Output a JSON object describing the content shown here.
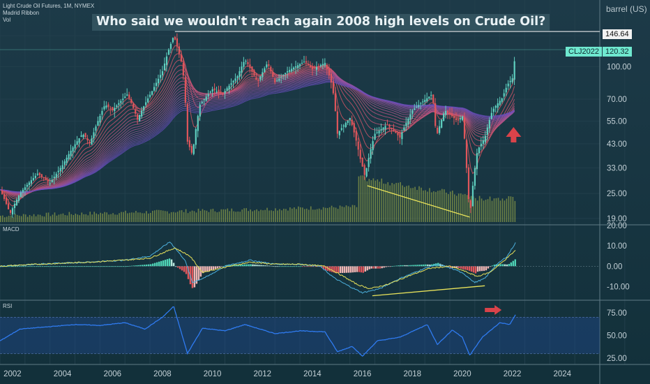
{
  "header": {
    "legend_lines": [
      "Light Crude Oil Futures, 1M, NYMEX",
      "Madrid Ribbon",
      "Vol"
    ],
    "unit_label": "barrel (US)"
  },
  "idea_title": "Who said we wouldn't reach again 2008 high levels on Crude Oil?",
  "panes": {
    "macd_label": "MACD",
    "rsi_label": "RSI"
  },
  "colors": {
    "background": "#16303d",
    "bull": "#5fd0c0",
    "bear": "#e0565b",
    "ribbon_top": "#e05662",
    "ribbon_bottom": "#6a4fc0",
    "macd_line": "#4db1de",
    "signal_line": "#e8e25a",
    "rsi_line": "#2f7bf0",
    "rsi_band": "#1f4a8c",
    "trendline": "#e8e25a",
    "arrow": "#d9434a",
    "volume": "#9aa948"
  },
  "chart_data": [
    {
      "type": "candlestick",
      "title": "Light Crude Oil Futures, 1M, NYMEX",
      "ylabel": "barrel (US)",
      "scale": "log",
      "ylim": [
        18,
        175
      ],
      "xlim": [
        2001.5,
        2025.5
      ],
      "x_ticks": [
        "2002",
        "2004",
        "2006",
        "2008",
        "2010",
        "2012",
        "2014",
        "2016",
        "2018",
        "2020",
        "2022",
        "2024"
      ],
      "y_ticks": [
        "100.00",
        "70.00",
        "55.00",
        "43.00",
        "33.00",
        "25.00",
        "19.00"
      ],
      "price_path": [
        [
          2001.5,
          26
        ],
        [
          2001.9,
          20
        ],
        [
          2002.3,
          25
        ],
        [
          2003.0,
          31
        ],
        [
          2003.5,
          28
        ],
        [
          2004.0,
          34
        ],
        [
          2004.8,
          48
        ],
        [
          2005.1,
          43
        ],
        [
          2005.7,
          66
        ],
        [
          2006.0,
          62
        ],
        [
          2006.6,
          74
        ],
        [
          2007.0,
          56
        ],
        [
          2007.6,
          77
        ],
        [
          2008.0,
          95
        ],
        [
          2008.45,
          140
        ],
        [
          2008.8,
          100
        ],
        [
          2009.0,
          44
        ],
        [
          2009.2,
          38
        ],
        [
          2009.5,
          66
        ],
        [
          2010.0,
          78
        ],
        [
          2010.4,
          74
        ],
        [
          2011.0,
          90
        ],
        [
          2011.3,
          108
        ],
        [
          2011.8,
          84
        ],
        [
          2012.2,
          104
        ],
        [
          2012.5,
          84
        ],
        [
          2013.0,
          95
        ],
        [
          2013.7,
          106
        ],
        [
          2014.0,
          97
        ],
        [
          2014.5,
          104
        ],
        [
          2014.8,
          80
        ],
        [
          2015.0,
          48
        ],
        [
          2015.5,
          57
        ],
        [
          2015.9,
          37
        ],
        [
          2016.1,
          30
        ],
        [
          2016.5,
          48
        ],
        [
          2017.0,
          53
        ],
        [
          2017.5,
          46
        ],
        [
          2018.0,
          62
        ],
        [
          2018.8,
          74
        ],
        [
          2018.95,
          46
        ],
        [
          2019.3,
          62
        ],
        [
          2019.8,
          55
        ],
        [
          2020.0,
          58
        ],
        [
          2020.2,
          28
        ],
        [
          2020.3,
          19
        ],
        [
          2020.6,
          40
        ],
        [
          2020.9,
          46
        ],
        [
          2021.2,
          62
        ],
        [
          2021.6,
          71
        ],
        [
          2021.8,
          82
        ],
        [
          2022.0,
          88
        ],
        [
          2022.15,
          120.32
        ]
      ],
      "horizontal_level": {
        "label": "146.64",
        "y": 146.64,
        "x_start": 2008.5
      },
      "last_price": {
        "symbol": "CLJ2022",
        "value": "120.32",
        "y": 120.32
      },
      "annotations": [
        "red up arrow below price near 2022",
        "yellow descending volume trendline 2016-2020"
      ]
    },
    {
      "type": "line",
      "title": "MACD",
      "ylim": [
        -16,
        20
      ],
      "y_ticks": [
        "20.00",
        "10.00",
        "0.00",
        "-10.00"
      ],
      "series_path": {
        "macd": [
          [
            2001.5,
            0
          ],
          [
            2003.0,
            1
          ],
          [
            2005.0,
            2
          ],
          [
            2006.5,
            3
          ],
          [
            2007.5,
            5
          ],
          [
            2008.3,
            12
          ],
          [
            2008.9,
            3
          ],
          [
            2009.2,
            -8
          ],
          [
            2009.8,
            -5
          ],
          [
            2010.5,
            0
          ],
          [
            2011.5,
            3
          ],
          [
            2012.5,
            1
          ],
          [
            2013.5,
            1
          ],
          [
            2014.3,
            0
          ],
          [
            2014.9,
            -6
          ],
          [
            2015.5,
            -10
          ],
          [
            2016.0,
            -13
          ],
          [
            2016.7,
            -11
          ],
          [
            2017.5,
            -6
          ],
          [
            2018.5,
            -1
          ],
          [
            2019.0,
            1
          ],
          [
            2019.8,
            -2
          ],
          [
            2020.2,
            -5
          ],
          [
            2020.5,
            -8
          ],
          [
            2020.9,
            -6
          ],
          [
            2021.3,
            0
          ],
          [
            2021.8,
            5
          ],
          [
            2022.15,
            12
          ]
        ],
        "signal": [
          [
            2001.5,
            0
          ],
          [
            2003.0,
            1
          ],
          [
            2005.0,
            2
          ],
          [
            2006.5,
            3
          ],
          [
            2007.5,
            4
          ],
          [
            2008.5,
            9
          ],
          [
            2009.1,
            5
          ],
          [
            2009.6,
            -3
          ],
          [
            2010.3,
            -1
          ],
          [
            2011.5,
            2
          ],
          [
            2012.5,
            1
          ],
          [
            2013.5,
            1
          ],
          [
            2014.5,
            0
          ],
          [
            2015.1,
            -4
          ],
          [
            2015.8,
            -9
          ],
          [
            2016.3,
            -11
          ],
          [
            2017.0,
            -9
          ],
          [
            2017.8,
            -5
          ],
          [
            2018.7,
            -1
          ],
          [
            2019.5,
            0
          ],
          [
            2020.0,
            -2
          ],
          [
            2020.6,
            -5
          ],
          [
            2021.1,
            -3
          ],
          [
            2021.6,
            2
          ],
          [
            2022.15,
            8
          ]
        ]
      },
      "trendline": {
        "from": [
          2016.4,
          -14.5
        ],
        "to": [
          2020.9,
          -9.6
        ]
      }
    },
    {
      "type": "line",
      "title": "RSI",
      "ylim": [
        18,
        88
      ],
      "y_ticks": [
        "75.00",
        "50.00",
        "25.00"
      ],
      "band": [
        30,
        70
      ],
      "series_path": [
        [
          2001.5,
          44
        ],
        [
          2002.3,
          57
        ],
        [
          2003.2,
          59
        ],
        [
          2004.5,
          62
        ],
        [
          2005.5,
          61
        ],
        [
          2006.5,
          64
        ],
        [
          2007.3,
          57
        ],
        [
          2008.0,
          70
        ],
        [
          2008.45,
          82
        ],
        [
          2009.0,
          30
        ],
        [
          2009.6,
          58
        ],
        [
          2010.5,
          55
        ],
        [
          2011.3,
          62
        ],
        [
          2012.5,
          52
        ],
        [
          2013.5,
          55
        ],
        [
          2014.5,
          54
        ],
        [
          2015.0,
          32
        ],
        [
          2015.6,
          38
        ],
        [
          2016.0,
          27
        ],
        [
          2016.6,
          44
        ],
        [
          2017.5,
          48
        ],
        [
          2018.6,
          62
        ],
        [
          2019.0,
          40
        ],
        [
          2019.6,
          56
        ],
        [
          2020.0,
          48
        ],
        [
          2020.3,
          28
        ],
        [
          2020.8,
          48
        ],
        [
          2021.5,
          64
        ],
        [
          2021.9,
          62
        ],
        [
          2022.15,
          74
        ]
      ],
      "annotations": [
        "red right arrow near RSI 80"
      ]
    }
  ]
}
